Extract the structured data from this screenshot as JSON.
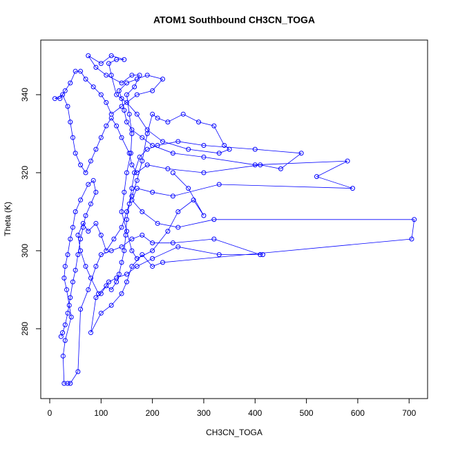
{
  "chart_data": {
    "type": "line",
    "title": "ATOM1 Southbound CH3CN_TOGA",
    "x_label": "CH3CN_TOGA",
    "y_label": "Theta (K)",
    "markers": true,
    "xlim": [
      -17.5,
      736
    ],
    "ylim": [
      262.1,
      354
    ],
    "xticks": [
      0,
      100,
      200,
      300,
      400,
      500,
      600,
      700
    ],
    "yticks": [
      280,
      300,
      320,
      340
    ],
    "x": [
      22,
      25,
      30,
      35,
      40,
      45,
      50,
      55,
      60,
      65,
      70,
      80,
      90,
      85,
      75,
      60,
      50,
      45,
      40,
      35,
      30,
      28,
      33,
      38,
      42,
      30,
      26,
      28,
      35,
      40,
      55,
      60,
      75,
      90,
      100,
      120,
      140,
      160,
      180,
      200,
      240,
      320,
      410,
      415,
      330,
      250,
      200,
      170,
      150,
      130,
      115,
      100,
      90,
      80,
      100,
      120,
      140,
      150,
      160,
      180,
      200,
      220,
      705,
      710,
      320,
      250,
      210,
      180,
      160,
      170,
      200,
      240,
      330,
      590,
      520,
      580,
      400,
      300,
      240,
      200,
      180,
      160,
      150,
      145,
      140,
      135,
      150,
      170,
      190,
      220,
      200,
      170,
      140,
      120,
      110,
      100,
      85,
      70,
      60,
      50,
      40,
      30,
      20,
      10,
      25,
      35,
      40,
      45,
      50,
      60,
      70,
      80,
      90,
      100,
      110,
      120,
      130,
      140,
      155,
      160,
      170,
      190,
      230,
      300,
      410,
      450,
      490,
      400,
      300,
      250,
      210,
      190,
      175,
      165,
      160,
      155,
      150,
      148,
      145,
      140,
      135,
      130,
      120,
      110,
      95,
      80,
      70,
      60,
      55,
      65,
      75,
      90,
      100,
      110,
      125,
      140,
      150,
      160,
      170,
      180,
      190,
      200,
      210,
      230,
      260,
      290,
      320,
      340,
      350,
      330,
      270,
      220,
      190,
      170,
      150,
      130,
      120,
      115,
      130,
      145,
      120,
      100,
      75,
      90,
      110,
      140,
      160,
      175,
      165,
      150,
      155,
      160,
      158,
      150,
      145,
      140,
      150,
      160,
      170,
      200,
      230,
      250,
      280,
      300,
      270,
      240
    ],
    "series": [
      {
        "color": "#0000ff",
        "values": [
          278,
          279,
          281,
          284,
          288,
          292,
          295,
          299,
          303,
          306,
          309,
          312,
          315,
          318,
          317,
          313,
          310,
          306,
          303,
          299,
          296,
          293,
          290,
          286,
          283,
          277,
          273,
          266,
          266,
          266,
          269,
          285,
          290,
          296,
          299,
          300,
          301,
          303,
          304,
          302,
          302,
          303,
          299,
          299,
          299,
          301,
          298,
          296,
          294,
          293,
          292,
          289,
          288,
          279,
          284,
          286,
          289,
          292,
          296,
          299,
          296,
          297,
          303,
          308,
          308,
          306,
          307,
          310,
          313,
          316,
          315,
          314,
          317,
          316,
          319,
          323,
          322,
          324,
          325,
          327,
          329,
          331,
          333,
          336,
          339,
          341,
          343,
          344,
          345,
          344,
          341,
          340,
          337,
          335,
          338,
          340,
          342,
          344,
          346,
          346,
          343,
          341,
          339,
          339,
          340,
          337,
          333,
          329,
          325,
          322,
          320,
          323,
          326,
          329,
          332,
          334,
          332,
          329,
          325,
          322,
          320,
          322,
          321,
          320,
          322,
          321,
          325,
          326,
          327,
          328,
          327,
          326,
          324,
          320,
          316,
          312,
          308,
          304,
          300,
          297,
          294,
          292,
          290,
          291,
          289,
          293,
          296,
          300,
          304,
          307,
          305,
          307,
          304,
          300,
          303,
          306,
          310,
          314,
          318,
          323,
          330,
          335,
          334,
          333,
          335,
          333,
          332,
          327,
          326,
          325,
          326,
          328,
          331,
          335,
          338,
          340,
          345,
          348,
          349,
          349,
          350,
          348,
          350,
          347,
          345,
          343,
          345,
          345,
          342,
          340,
          335,
          330,
          325,
          320,
          315,
          310,
          305,
          300,
          298,
          300,
          305,
          310,
          313,
          309,
          316,
          320
        ]
      }
    ]
  }
}
